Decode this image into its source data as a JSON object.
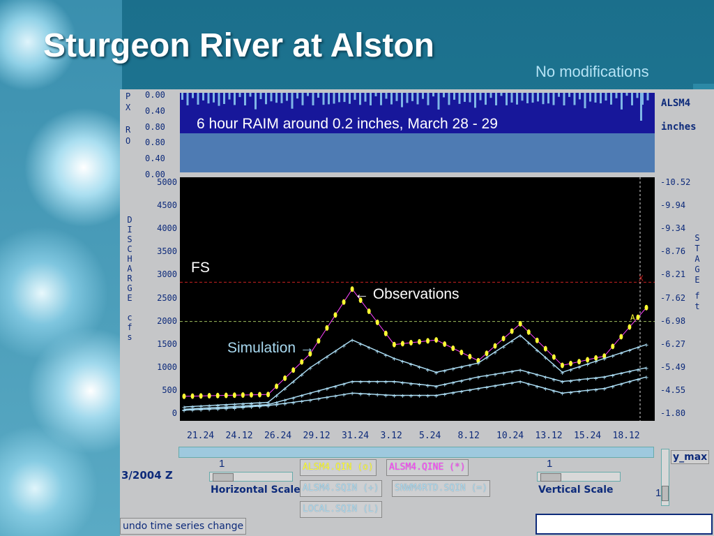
{
  "title": "Sturgeon River at Alston",
  "subtitle": "No modifications",
  "rain": {
    "axis_label_left": [
      "P",
      "X",
      "",
      "R",
      "O"
    ],
    "ticks_top": [
      "0.00",
      "0.40",
      "0.80"
    ],
    "ticks_bottom": [
      "0.80",
      "0.40",
      "0.00"
    ],
    "station": "ALSM4",
    "unit": "inches",
    "annotation": "6 hour RAIM around 0.2 inches, March 28 - 29"
  },
  "plot": {
    "left_axis_label": [
      "D",
      "I",
      "S",
      "C",
      "H",
      "A",
      "R",
      "G",
      "E",
      "",
      "c",
      "f",
      "s"
    ],
    "right_axis_label": [
      "S",
      "T",
      "A",
      "G",
      "E",
      "",
      "f",
      "t"
    ],
    "left_ticks": [
      "5000",
      "4500",
      "4000",
      "3500",
      "3000",
      "2500",
      "2000",
      "1500",
      "1000",
      "500",
      "0"
    ],
    "right_ticks": [
      "10.52",
      "9.94",
      "9.34",
      "8.76",
      "8.21",
      "7.62",
      "6.98",
      "6.27",
      "5.49",
      "4.55",
      "1.80"
    ],
    "x_ticks": [
      "21.24",
      "24.12",
      "26.24",
      "29.12",
      "31.24",
      "3.12",
      "5.24",
      "8.12",
      "10.24",
      "13.12",
      "15.24",
      "18.12"
    ],
    "fs_label": "FS",
    "observations_label": "Observations",
    "simulation_label": "Simulation",
    "fs_value": 2850,
    "action_value": 2000,
    "marker_x": "X",
    "marker_a": "A",
    "colors": {
      "observed": "#ffff33",
      "simulated": "#a8d9f0",
      "fs": "#cc2222",
      "action": "#a0c060",
      "magenta": "#ff44ff"
    }
  },
  "chart_data": {
    "type": "line",
    "ylabel": "DISCHARGE cfs",
    "y2label": "STAGE ft",
    "ylim": [
      0,
      5000
    ],
    "x": [
      "21.24",
      "24.12",
      "26.24",
      "29.12",
      "31.24",
      "3.12",
      "5.24",
      "8.12",
      "10.24",
      "13.12",
      "15.24",
      "18.12"
    ],
    "series": [
      {
        "name": "ALSM4.QIN",
        "values": [
          380,
          400,
          420,
          1300,
          2700,
          1500,
          1600,
          1150,
          1950,
          1050,
          1250,
          2300
        ]
      },
      {
        "name": "ALSM4.SQIN",
        "values": [
          150,
          200,
          250,
          1000,
          1600,
          1200,
          900,
          1100,
          1700,
          900,
          1200,
          1500
        ]
      },
      {
        "name": "SNWM4RTD.SQIN",
        "values": [
          100,
          150,
          200,
          450,
          700,
          700,
          600,
          800,
          950,
          700,
          800,
          1000
        ]
      },
      {
        "name": "LOCAL.SQIN",
        "values": [
          80,
          120,
          180,
          300,
          450,
          400,
          400,
          550,
          700,
          450,
          550,
          800
        ]
      }
    ]
  },
  "controls": {
    "date_label": "3/2004 Z",
    "hscale_value": "1",
    "hscale_label": "Horizontal Scale",
    "vscale_value": "1",
    "vscale_label": "Vertical Scale",
    "ymax_label": "y_max",
    "ymax_value": "1",
    "undo_label": "undo time series change",
    "buttons": [
      {
        "label": "ALSM4.QIN  (o)",
        "color": "#ffff33"
      },
      {
        "label": "ALSM4.QINE (*)",
        "color": "#ff44ff"
      },
      {
        "label": "ALSM4.SQIN (+)",
        "color": "#a8d9f0"
      },
      {
        "label": "SNWM4RTD.SQIN (=)",
        "color": "#a8d9f0"
      },
      {
        "label": "LOCAL.SQIN (L)",
        "color": "#a8d9f0"
      }
    ]
  }
}
